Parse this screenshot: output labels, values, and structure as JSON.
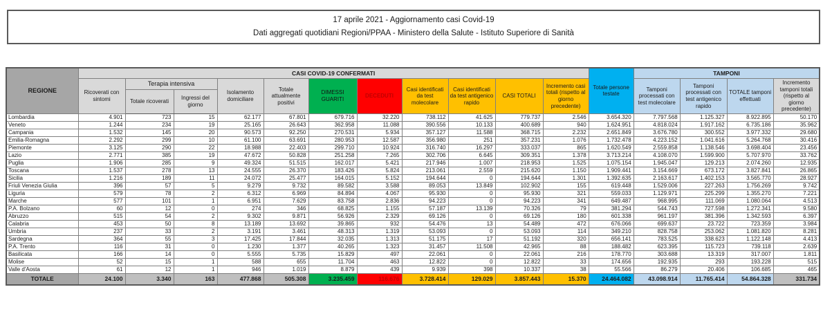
{
  "title": {
    "line1": "17 aprile 2021 - Aggiornamento casi Covid-19",
    "line2": "Dati aggregati quotidiani Regioni/PPAA - Ministero della Salute - Istituto Superiore di Sanità"
  },
  "colors": {
    "header_gray": "#d9d9d9",
    "dark_gray": "#a6a6a6",
    "total_gray": "#bfbfbf",
    "green": "#00B050",
    "red_bg": "#FF0000",
    "red_text": "#C00000",
    "yellow": "#FFC000",
    "cyan": "#00B0F0",
    "light_blue": "#BDD7EE"
  },
  "table": {
    "headers": {
      "regione": "REGIONE",
      "casi_confermati_banner": "CASI COVID-19 CONFERMATI",
      "tamponi_banner": "TAMPONI",
      "ricoverati_sintomi": "Ricoverati con sintomi",
      "terapia_intensiva": "Terapia intensiva",
      "totale_ricoverati": "Totale ricoverati",
      "ingressi_giorno": "Ingressi del giorno",
      "isolamento_domiciliare": "Isolamento domiciliare",
      "totale_attualmente_positivi": "Totale attualmente positivi",
      "dimessi_guariti": "DIMESSI GUARITI",
      "deceduti": "DECEDUTI",
      "casi_test_molecolare": "Casi identificati da test molecolare",
      "casi_test_antigenico": "Casi identificati da test antigenico rapido",
      "casi_totali": "CASI TOTALI",
      "incremento_casi": "Incremento casi totali (rispetto al giorno precedente)",
      "persone_testate": "Totale persone testate",
      "tamponi_molecolare": "Tamponi processati con test molecolare",
      "tamponi_antigenico": "Tamponi processati con test antigenico rapido",
      "totale_tamponi": "TOTALE tamponi effettuati",
      "incremento_tamponi": "Incremento tamponi totali (rispetto al giorno precedente)"
    },
    "rows": [
      {
        "name": "Lombardia",
        "values": [
          "4.901",
          "723",
          "15",
          "62.177",
          "67.801",
          "679.716",
          "32.220",
          "738.112",
          "41.625",
          "779.737",
          "2.546",
          "3.654.320",
          "7.797.568",
          "1.125.327",
          "8.922.895",
          "50.170"
        ]
      },
      {
        "name": "Veneto",
        "values": [
          "1.244",
          "234",
          "19",
          "25.165",
          "26.643",
          "362.958",
          "11.088",
          "390.556",
          "10.133",
          "400.689",
          "940",
          "1.624.951",
          "4.818.024",
          "1.917.162",
          "6.735.186",
          "35.962"
        ]
      },
      {
        "name": "Campania",
        "values": [
          "1.532",
          "145",
          "20",
          "90.573",
          "92.250",
          "270.531",
          "5.934",
          "357.127",
          "11.588",
          "368.715",
          "2.232",
          "2.651.849",
          "3.676.780",
          "300.552",
          "3.977.332",
          "29.680"
        ]
      },
      {
        "name": "Emilia-Romagna",
        "values": [
          "2.292",
          "299",
          "10",
          "61.100",
          "63.691",
          "280.953",
          "12.587",
          "356.980",
          "251",
          "357.231",
          "1.076",
          "1.732.478",
          "4.223.152",
          "1.041.616",
          "5.264.768",
          "30.416"
        ]
      },
      {
        "name": "Piemonte",
        "values": [
          "3.125",
          "290",
          "22",
          "18.988",
          "22.403",
          "299.710",
          "10.924",
          "316.740",
          "16.297",
          "333.037",
          "865",
          "1.620.549",
          "2.559.858",
          "1.138.546",
          "3.698.404",
          "23.456"
        ]
      },
      {
        "name": "Lazio",
        "values": [
          "2.771",
          "385",
          "19",
          "47.672",
          "50.828",
          "251.258",
          "7.265",
          "302.706",
          "6.645",
          "309.351",
          "1.378",
          "3.713.214",
          "4.108.070",
          "1.599.900",
          "5.707.970",
          "33.762"
        ]
      },
      {
        "name": "Puglia",
        "values": [
          "1.906",
          "285",
          "9",
          "49.324",
          "51.515",
          "162.017",
          "5.421",
          "217.946",
          "1.007",
          "218.953",
          "1.525",
          "1.075.154",
          "1.945.047",
          "129.213",
          "2.074.260",
          "12.935"
        ]
      },
      {
        "name": "Toscana",
        "values": [
          "1.537",
          "278",
          "13",
          "24.555",
          "26.370",
          "183.426",
          "5.824",
          "213.061",
          "2.559",
          "215.620",
          "1.150",
          "1.909.441",
          "3.154.669",
          "673.172",
          "3.827.841",
          "26.865"
        ]
      },
      {
        "name": "Sicilia",
        "values": [
          "1.216",
          "189",
          "11",
          "24.072",
          "25.477",
          "164.015",
          "5.152",
          "194.644",
          "0",
          "194.644",
          "1.301",
          "1.392.635",
          "2.163.617",
          "1.402.153",
          "3.565.770",
          "28.927"
        ]
      },
      {
        "name": "Friuli Venezia Giulia",
        "values": [
          "396",
          "57",
          "5",
          "9.279",
          "9.732",
          "89.582",
          "3.588",
          "89.053",
          "13.849",
          "102.902",
          "155",
          "619.448",
          "1.529.006",
          "227.263",
          "1.756.269",
          "9.742"
        ]
      },
      {
        "name": "Liguria",
        "values": [
          "579",
          "78",
          "2",
          "6.312",
          "6.969",
          "84.894",
          "4.067",
          "95.930",
          "0",
          "95.930",
          "321",
          "559.033",
          "1.129.971",
          "225.299",
          "1.355.270",
          "7.221"
        ]
      },
      {
        "name": "Marche",
        "values": [
          "577",
          "101",
          "1",
          "6.951",
          "7.629",
          "83.758",
          "2.836",
          "94.223",
          "0",
          "94.223",
          "341",
          "649.487",
          "968.995",
          "111.069",
          "1.080.064",
          "4.513"
        ]
      },
      {
        "name": "P.A. Bolzano",
        "values": [
          "60",
          "12",
          "0",
          "274",
          "346",
          "68.825",
          "1.155",
          "57.187",
          "13.139",
          "70.326",
          "79",
          "381.294",
          "544.743",
          "727.598",
          "1.272.341",
          "9.580"
        ]
      },
      {
        "name": "Abruzzo",
        "values": [
          "515",
          "54",
          "2",
          "9.302",
          "9.871",
          "56.926",
          "2.329",
          "69.126",
          "0",
          "69.126",
          "180",
          "601.338",
          "961.197",
          "381.396",
          "1.342.593",
          "6.397"
        ]
      },
      {
        "name": "Calabria",
        "values": [
          "453",
          "50",
          "8",
          "13.189",
          "13.692",
          "39.865",
          "932",
          "54.476",
          "13",
          "54.489",
          "472",
          "676.066",
          "699.637",
          "23.722",
          "723.359",
          "3.984"
        ]
      },
      {
        "name": "Umbria",
        "values": [
          "237",
          "33",
          "2",
          "3.191",
          "3.461",
          "48.313",
          "1.319",
          "53.093",
          "0",
          "53.093",
          "114",
          "349.210",
          "828.758",
          "253.062",
          "1.081.820",
          "8.281"
        ]
      },
      {
        "name": "Sardegna",
        "values": [
          "364",
          "55",
          "3",
          "17.425",
          "17.844",
          "32.035",
          "1.313",
          "51.175",
          "17",
          "51.192",
          "320",
          "656.141",
          "783.525",
          "338.623",
          "1.122.148",
          "4.413"
        ]
      },
      {
        "name": "P.A. Trento",
        "values": [
          "116",
          "31",
          "0",
          "1.230",
          "1.377",
          "40.265",
          "1.323",
          "31.457",
          "11.508",
          "42.965",
          "88",
          "188.482",
          "623.395",
          "115.723",
          "739.118",
          "2.639"
        ]
      },
      {
        "name": "Basilicata",
        "values": [
          "166",
          "14",
          "0",
          "5.555",
          "5.735",
          "15.829",
          "497",
          "22.061",
          "0",
          "22.061",
          "216",
          "178.770",
          "303.688",
          "13.319",
          "317.007",
          "1.811"
        ]
      },
      {
        "name": "Molise",
        "values": [
          "52",
          "15",
          "1",
          "588",
          "655",
          "11.704",
          "463",
          "12.822",
          "0",
          "12.822",
          "33",
          "174.656",
          "192.935",
          "293",
          "193.228",
          "515"
        ]
      },
      {
        "name": "Valle d'Aosta",
        "values": [
          "61",
          "12",
          "1",
          "946",
          "1.019",
          "8.879",
          "439",
          "9.939",
          "398",
          "10.337",
          "38",
          "55.566",
          "86.279",
          "20.406",
          "106.685",
          "465"
        ]
      }
    ],
    "total": {
      "name": "TOTALE",
      "values": [
        "24.100",
        "3.340",
        "163",
        "477.868",
        "505.308",
        "3.235.459",
        "116.676",
        "3.728.414",
        "129.029",
        "3.857.443",
        "15.370",
        "24.464.082",
        "43.098.914",
        "11.765.414",
        "54.864.328",
        "331.734"
      ]
    }
  }
}
